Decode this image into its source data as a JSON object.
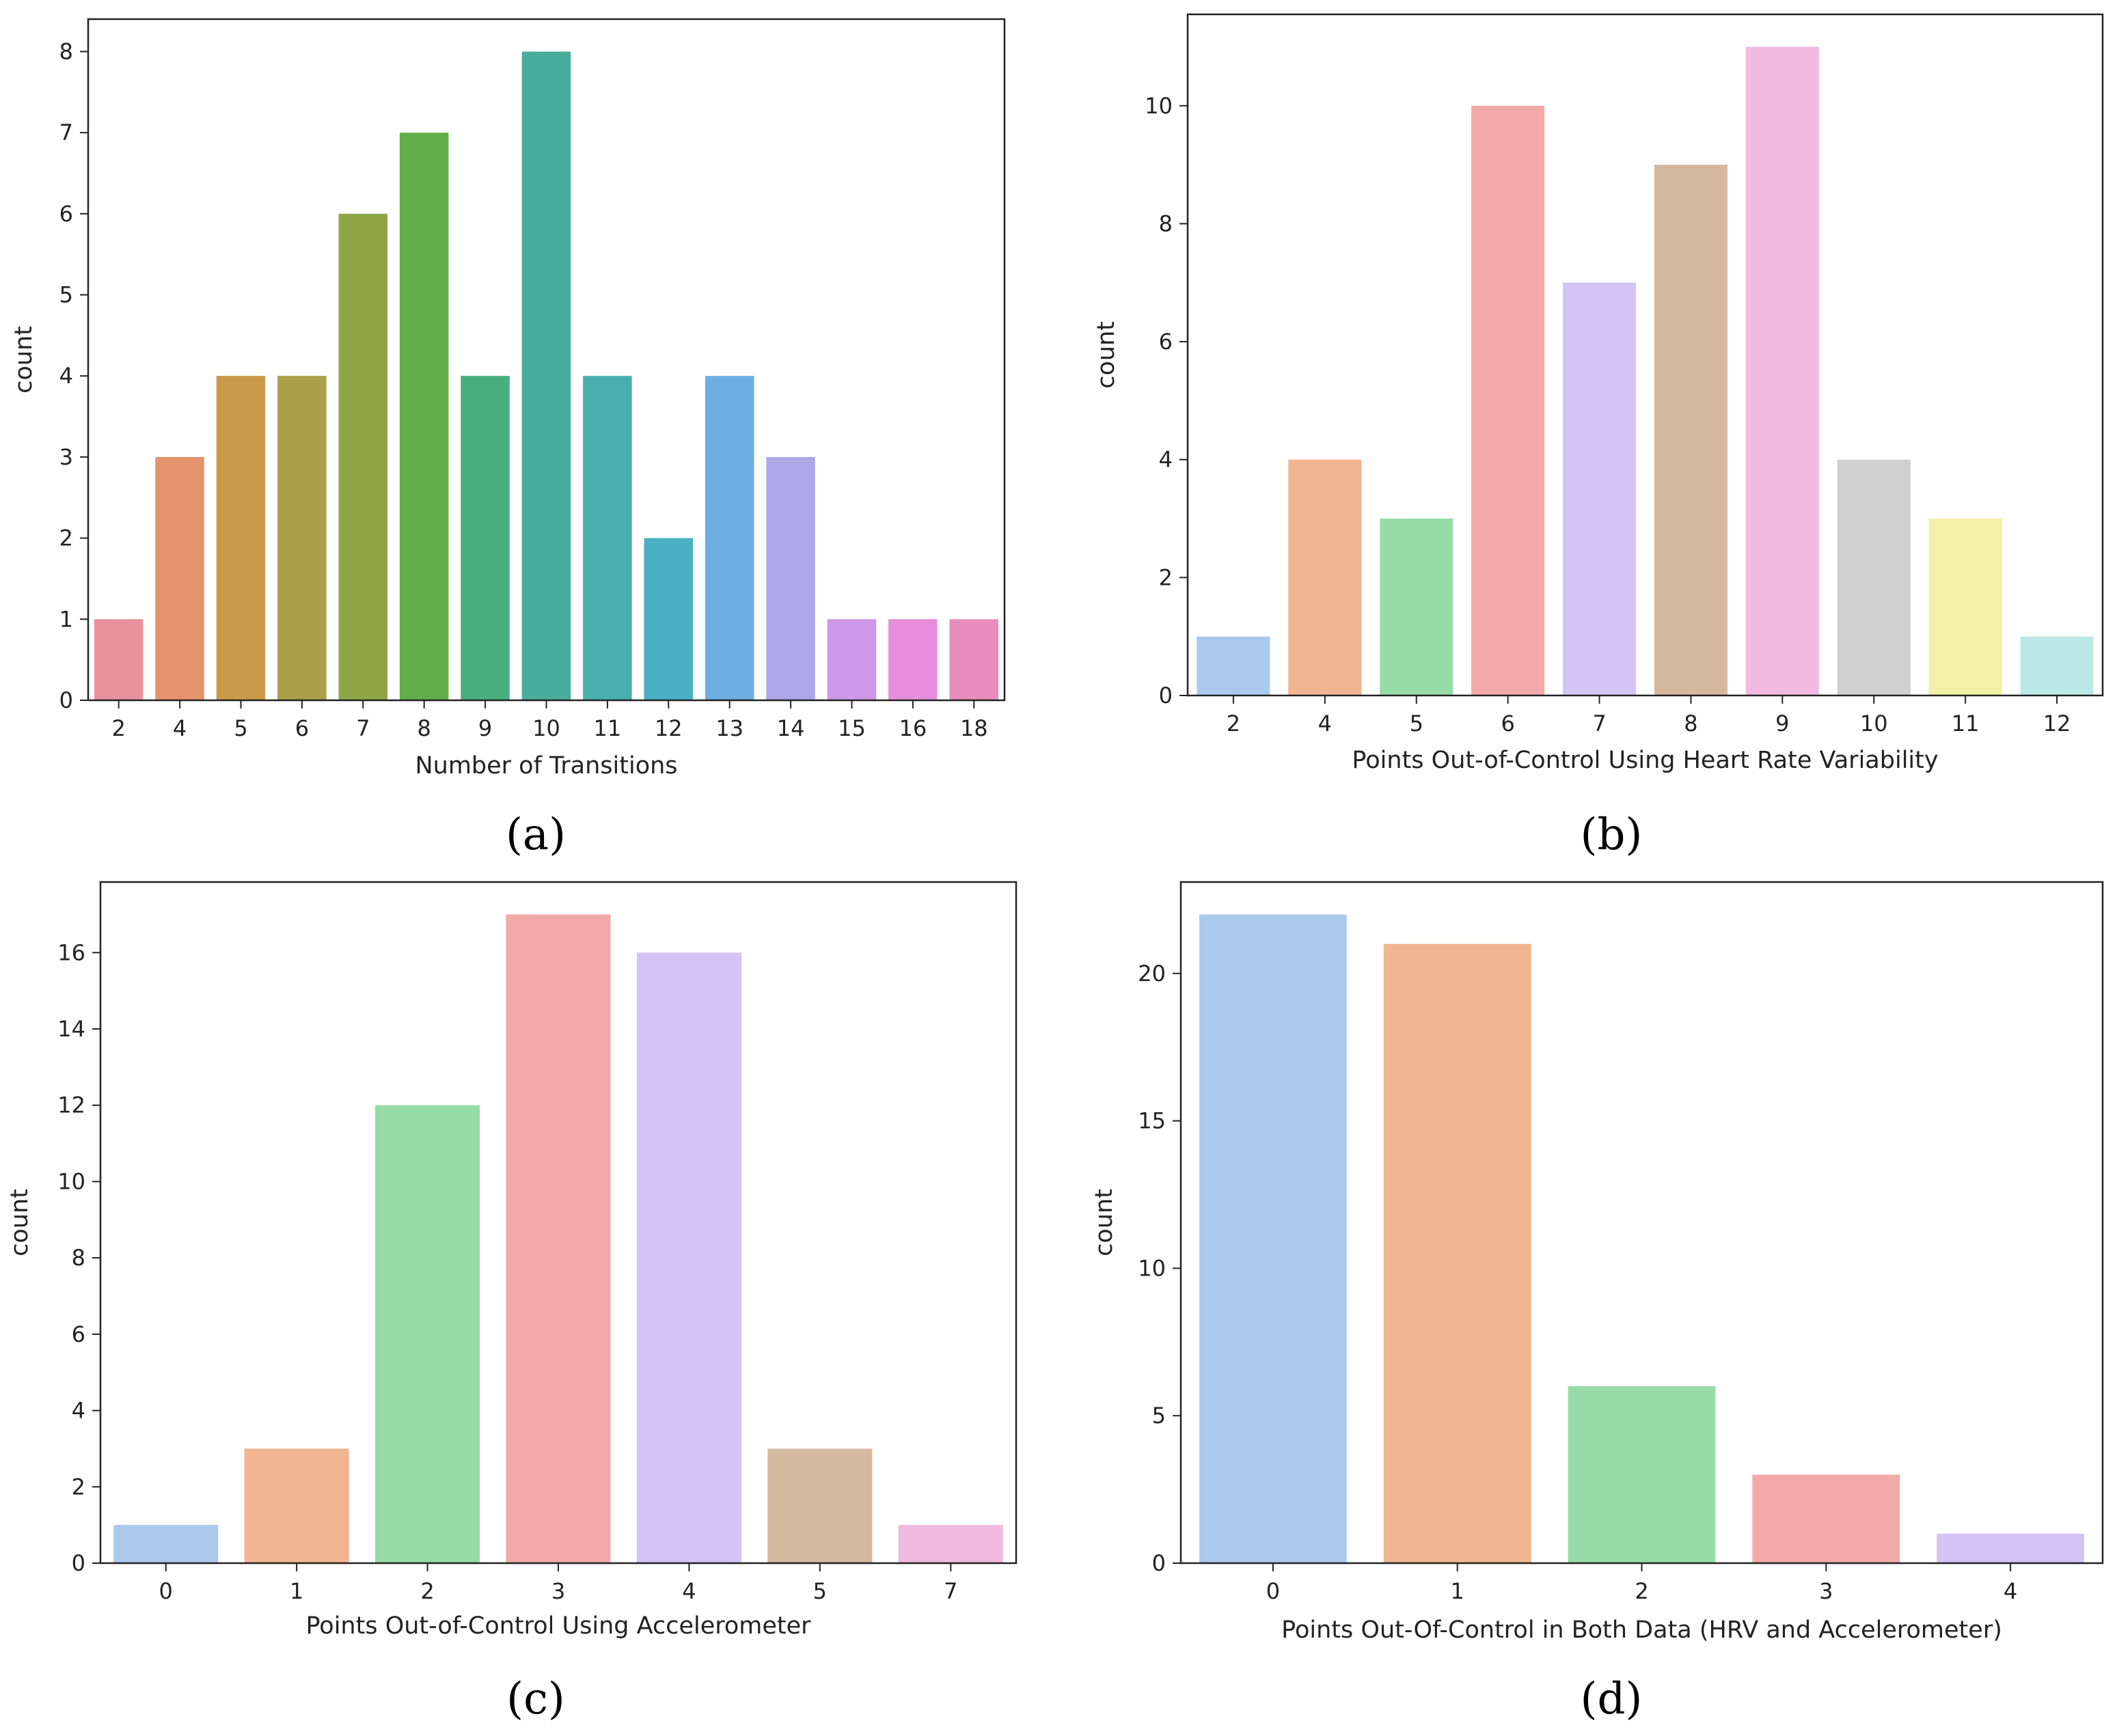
{
  "figure": {
    "panels": [
      "(a)",
      "(b)",
      "(c)",
      "(d)"
    ]
  },
  "chart_data": [
    {
      "type": "bar",
      "caption": "(a)",
      "categories": [
        "2",
        "4",
        "5",
        "6",
        "7",
        "8",
        "9",
        "10",
        "11",
        "12",
        "13",
        "14",
        "15",
        "16",
        "18"
      ],
      "values": [
        1,
        3,
        4,
        4,
        6,
        7,
        4,
        8,
        4,
        2,
        4,
        3,
        1,
        1,
        1
      ],
      "colors": [
        "#e8929e",
        "#e5946e",
        "#c99a4a",
        "#aba049",
        "#8fa646",
        "#62ae48",
        "#48ae7e",
        "#48ae9b",
        "#4aaeae",
        "#4bafc6",
        "#6daee2",
        "#ada7e8",
        "#ce97e8",
        "#e68ddb",
        "#e88cbd"
      ],
      "xlabel": "Number of Transitions",
      "ylabel": "count",
      "ylim": [
        0,
        8.4
      ],
      "yticks": [
        0,
        1,
        2,
        3,
        4,
        5,
        6,
        7,
        8
      ]
    },
    {
      "type": "bar",
      "caption": "(b)",
      "categories": [
        "2",
        "4",
        "5",
        "6",
        "7",
        "8",
        "9",
        "10",
        "11",
        "12"
      ],
      "values": [
        1,
        4,
        3,
        10,
        7,
        9,
        11,
        4,
        3,
        1
      ],
      "colors": [
        "#abc9ed",
        "#f1b591",
        "#97dba6",
        "#f2aaa8",
        "#d3c4f6",
        "#d5b99f",
        "#f1b9e0",
        "#cfcfcf",
        "#f3f1a8",
        "#bbe9e8"
      ],
      "xlabel": "Points Out-of-Control Using Heart Rate Variability",
      "ylabel": "count",
      "ylim": [
        0,
        11.55
      ],
      "yticks": [
        0,
        2,
        4,
        6,
        8,
        10
      ]
    },
    {
      "type": "bar",
      "caption": "(c)",
      "categories": [
        "0",
        "1",
        "2",
        "3",
        "4",
        "5",
        "7"
      ],
      "values": [
        1,
        3,
        12,
        17,
        16,
        3,
        1
      ],
      "colors": [
        "#abc9ed",
        "#f1b591",
        "#97dba6",
        "#f2aaa8",
        "#d3c4f6",
        "#d5b99f",
        "#f1b9e0"
      ],
      "xlabel": "Points Out-of-Control Using Accelerometer",
      "ylabel": "count",
      "ylim": [
        0,
        17.85
      ],
      "yticks": [
        0,
        2,
        4,
        6,
        8,
        10,
        12,
        14,
        16
      ]
    },
    {
      "type": "bar",
      "caption": "(d)",
      "categories": [
        "0",
        "1",
        "2",
        "3",
        "4"
      ],
      "values": [
        22,
        21,
        6,
        3,
        1
      ],
      "colors": [
        "#abc9ed",
        "#f1b591",
        "#97dba6",
        "#f2aaa8",
        "#d3c4f6"
      ],
      "xlabel": "Points Out-Of-Control in Both Data (HRV and Accelerometer)",
      "ylabel": "count",
      "ylim": [
        0,
        23.1
      ],
      "yticks": [
        0,
        5,
        10,
        15,
        20
      ]
    }
  ]
}
